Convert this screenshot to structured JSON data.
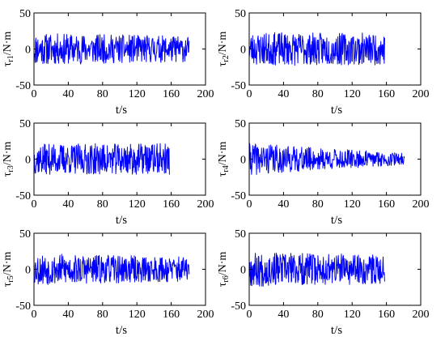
{
  "colors": {
    "series": "#0000ff",
    "axes": "#000000",
    "background": "#ffffff"
  },
  "chart_data": [
    {
      "type": "line",
      "ylabel": "τ",
      "ylabel_sub": "r1",
      "ylabel_unit": "/N·m",
      "xlabel": "t/s",
      "xlim": [
        0,
        200
      ],
      "ylim": [
        -50,
        50
      ],
      "xticks": [
        "0",
        "40",
        "80",
        "120",
        "160",
        "200"
      ],
      "yticks": [
        "50",
        "0",
        "-50"
      ],
      "grid": false,
      "series": [
        {
          "t_end": 181,
          "amplitude_start": 22,
          "amplitude_end": 18,
          "seed": 11
        }
      ]
    },
    {
      "type": "line",
      "ylabel": "τ",
      "ylabel_sub": "r2",
      "ylabel_unit": "/N·m",
      "xlabel": "t/s",
      "xlim": [
        0,
        200
      ],
      "ylim": [
        -50,
        50
      ],
      "xticks": [
        "0",
        "40",
        "80",
        "120",
        "160",
        "200"
      ],
      "yticks": [
        "50",
        "0",
        "-50"
      ],
      "grid": false,
      "series": [
        {
          "t_end": 158,
          "amplitude_start": 23,
          "amplitude_end": 22,
          "seed": 23
        }
      ]
    },
    {
      "type": "line",
      "ylabel": "τ",
      "ylabel_sub": "r3",
      "ylabel_unit": "/N·m",
      "xlabel": "t/s",
      "xlim": [
        0,
        200
      ],
      "ylim": [
        -50,
        50
      ],
      "xticks": [
        "0",
        "40",
        "80",
        "120",
        "160",
        "200"
      ],
      "yticks": [
        "50",
        "0",
        "-50"
      ],
      "grid": false,
      "series": [
        {
          "t_end": 158,
          "amplitude_start": 21,
          "amplitude_end": 22,
          "seed": 37
        }
      ]
    },
    {
      "type": "line",
      "ylabel": "τ",
      "ylabel_sub": "r4",
      "ylabel_unit": "/N·m",
      "xlabel": "t/s",
      "xlim": [
        0,
        200
      ],
      "ylim": [
        -50,
        50
      ],
      "xticks": [
        "0",
        "40",
        "80",
        "120",
        "160",
        "200"
      ],
      "yticks": [
        "50",
        "0",
        "-50"
      ],
      "grid": false,
      "series": [
        {
          "t_end": 181,
          "amplitude_start": 22,
          "amplitude_end": 8,
          "seed": 41
        }
      ]
    },
    {
      "type": "line",
      "ylabel": "τ",
      "ylabel_sub": "r5",
      "ylabel_unit": "/N·m",
      "xlabel": "t/s",
      "xlim": [
        0,
        200
      ],
      "ylim": [
        -50,
        50
      ],
      "xticks": [
        "0",
        "40",
        "80",
        "120",
        "160",
        "200"
      ],
      "yticks": [
        "50",
        "0",
        "-50"
      ],
      "grid": false,
      "series": [
        {
          "t_end": 181,
          "amplitude_start": 22,
          "amplitude_end": 17,
          "seed": 53
        }
      ]
    },
    {
      "type": "line",
      "ylabel": "τ",
      "ylabel_sub": "r6",
      "ylabel_unit": "/N·m",
      "xlabel": "t/s",
      "xlim": [
        0,
        200
      ],
      "ylim": [
        -50,
        50
      ],
      "xticks": [
        "0",
        "40",
        "80",
        "120",
        "160",
        "200"
      ],
      "yticks": [
        "50",
        "0",
        "-50"
      ],
      "grid": false,
      "series": [
        {
          "t_end": 158,
          "amplitude_start": 24,
          "amplitude_end": 20,
          "seed": 67
        }
      ]
    }
  ]
}
